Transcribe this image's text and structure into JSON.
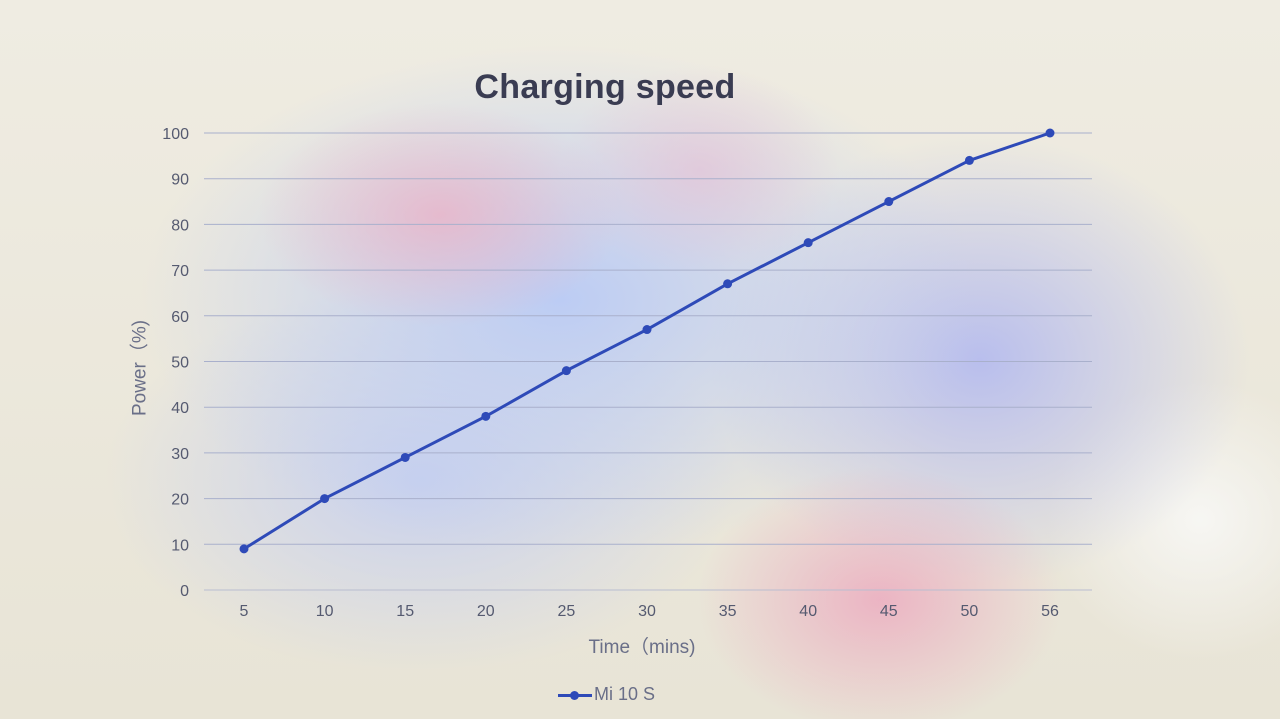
{
  "chart_data": {
    "type": "line",
    "title": "Charging speed",
    "xlabel": "Time（mins)",
    "ylabel": "Power（%)",
    "categories": [
      "5",
      "10",
      "15",
      "20",
      "25",
      "30",
      "35",
      "40",
      "45",
      "50",
      "56"
    ],
    "series": [
      {
        "name": "Mi 10 S",
        "values": [
          9,
          20,
          29,
          38,
          48,
          57,
          67,
          76,
          85,
          94,
          100
        ],
        "color": "#2e4ab8"
      }
    ],
    "ylim": [
      0,
      100
    ],
    "yticks": [
      "0",
      "10",
      "20",
      "30",
      "40",
      "50",
      "60",
      "70",
      "80",
      "90",
      "100"
    ],
    "grid": true,
    "legend_position": "bottom"
  }
}
